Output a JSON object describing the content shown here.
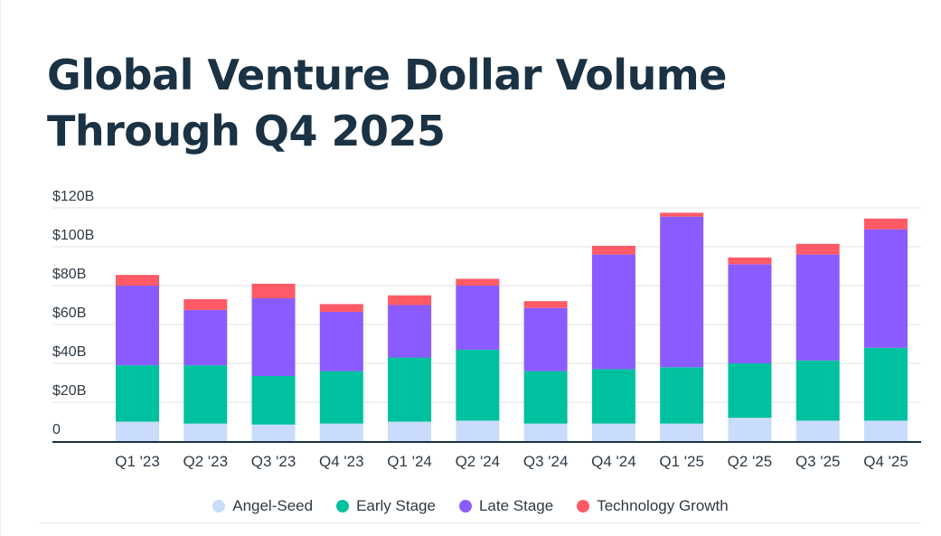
{
  "chart_data": {
    "type": "bar",
    "stacked": true,
    "title": "Global Venture Dollar Volume Through Q4 2025",
    "xlabel": "",
    "ylabel": "",
    "categories": [
      "Q1 '23",
      "Q2 '23",
      "Q3 '23",
      "Q4 '23",
      "Q1 '24",
      "Q2 '24",
      "Q3 '24",
      "Q4 '24",
      "Q1 '25",
      "Q2 '25",
      "Q3 '25",
      "Q4 '25"
    ],
    "series": [
      {
        "name": "Angel-Seed",
        "color": "#c9dcfb",
        "values": [
          10,
          9,
          8.5,
          9,
          10,
          10.5,
          9,
          9,
          9,
          12,
          10.5,
          10.5
        ]
      },
      {
        "name": "Early Stage",
        "color": "#00c19f",
        "values": [
          29,
          30,
          25,
          27,
          33,
          36.5,
          27,
          28,
          29,
          28,
          31,
          37.5
        ]
      },
      {
        "name": "Late Stage",
        "color": "#8a5cff",
        "values": [
          41,
          28.5,
          40,
          30.5,
          27,
          33,
          32.5,
          59,
          77.5,
          51,
          54.5,
          61
        ]
      },
      {
        "name": "Technology Growth",
        "color": "#ff5a66",
        "values": [
          5.5,
          5.5,
          7.5,
          4,
          5,
          3.5,
          3.5,
          4.5,
          2,
          3.5,
          5.5,
          5.5
        ]
      }
    ],
    "y_ticks": [
      "0",
      "$20B",
      "$40B",
      "$60B",
      "$80B",
      "$100B",
      "$120B"
    ],
    "ylim": [
      0,
      120
    ],
    "grid": true,
    "legend_position": "bottom"
  }
}
